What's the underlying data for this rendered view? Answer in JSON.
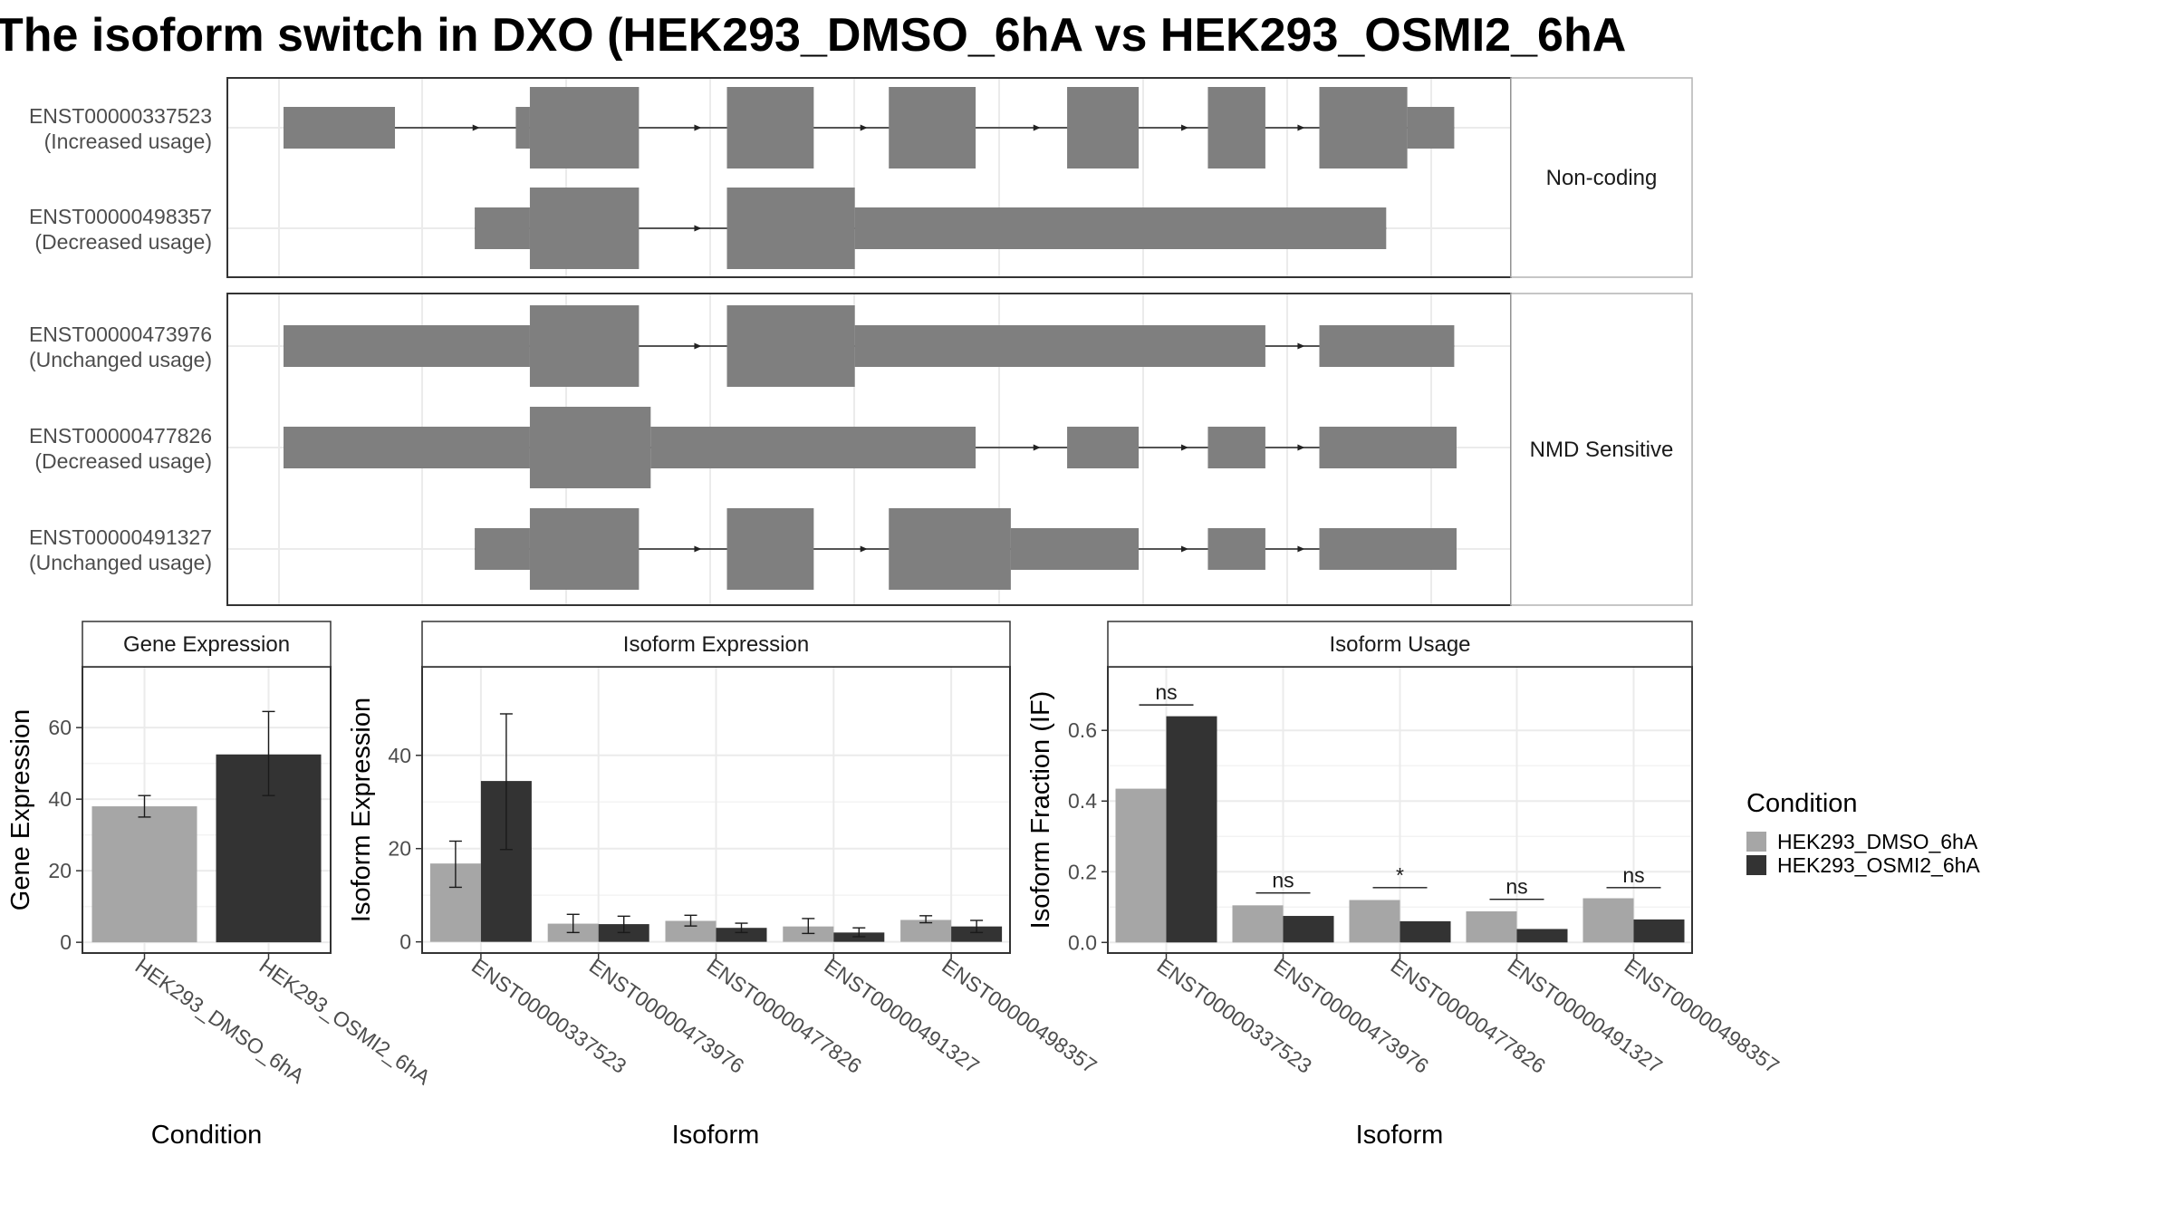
{
  "title": "The isoform switch in DXO (HEK293_DMSO_6hA vs HEK293_OSMI2_6hA",
  "structure": {
    "panels": [
      {
        "category": "Non-coding",
        "isoforms": [
          {
            "id": "ENST00000337523",
            "usage": "(Increased usage)",
            "blocks": [
              [
                0.0,
                0.095,
                "s"
              ],
              [
                0.198,
                0.21,
                "s"
              ],
              [
                0.21,
                0.303,
                "t"
              ],
              [
                0.378,
                0.452,
                "t"
              ],
              [
                0.516,
                0.59,
                "t"
              ],
              [
                0.668,
                0.729,
                "t"
              ],
              [
                0.788,
                0.837,
                "t"
              ],
              [
                0.883,
                0.958,
                "t"
              ],
              [
                0.958,
                0.998,
                "s"
              ]
            ],
            "arrows": true
          },
          {
            "id": "ENST00000498357",
            "usage": "(Decreased usage)",
            "blocks": [
              [
                0.163,
                0.21,
                "s"
              ],
              [
                0.21,
                0.303,
                "t"
              ],
              [
                0.378,
                0.487,
                "t"
              ],
              [
                0.487,
                0.94,
                "s"
              ]
            ],
            "arrows": true
          }
        ]
      },
      {
        "category": "NMD Sensitive",
        "isoforms": [
          {
            "id": "ENST00000473976",
            "usage": "(Unchanged usage)",
            "blocks": [
              [
                0.0,
                0.21,
                "s"
              ],
              [
                0.21,
                0.303,
                "t"
              ],
              [
                0.378,
                0.487,
                "t"
              ],
              [
                0.487,
                0.837,
                "s"
              ],
              [
                0.883,
                0.998,
                "s"
              ]
            ],
            "arrows": true
          },
          {
            "id": "ENST00000477826",
            "usage": "(Decreased usage)",
            "blocks": [
              [
                0.0,
                0.21,
                "s"
              ],
              [
                0.21,
                0.313,
                "t"
              ],
              [
                0.313,
                0.59,
                "s"
              ],
              [
                0.668,
                0.729,
                "s"
              ],
              [
                0.788,
                0.837,
                "s"
              ],
              [
                0.883,
                1.0,
                "s"
              ]
            ],
            "arrows": true
          },
          {
            "id": "ENST00000491327",
            "usage": "(Unchanged usage)",
            "blocks": [
              [
                0.163,
                0.21,
                "s"
              ],
              [
                0.21,
                0.303,
                "t"
              ],
              [
                0.378,
                0.452,
                "t"
              ],
              [
                0.516,
                0.62,
                "t"
              ],
              [
                0.62,
                0.729,
                "s"
              ],
              [
                0.788,
                0.837,
                "s"
              ],
              [
                0.883,
                1.0,
                "s"
              ]
            ],
            "arrows": true
          }
        ]
      }
    ]
  },
  "chart_data": [
    {
      "type": "bar",
      "title": "Gene Expression",
      "xlabel": "Condition",
      "ylabel": "Gene Expression",
      "ylim": [
        -3,
        77
      ],
      "yticks": [
        0,
        20,
        40,
        60
      ],
      "categories": [
        "HEK293_DMSO_6hA",
        "HEK293_OSMI2_6hA"
      ],
      "series": [
        {
          "values": [
            38,
            52.5
          ],
          "err_low": [
            35,
            41
          ],
          "err_high": [
            41,
            64.5
          ]
        }
      ]
    },
    {
      "type": "bar",
      "title": "Isoform Expression",
      "xlabel": "Isoform",
      "ylabel": "Isoform Expression",
      "ylim": [
        -2.4,
        59
      ],
      "yticks": [
        0,
        20,
        40
      ],
      "categories": [
        "ENST00000337523",
        "ENST00000473976",
        "ENST00000477826",
        "ENST00000491327",
        "ENST00000498357"
      ],
      "series": [
        {
          "name": "HEK293_DMSO_6hA",
          "values": [
            16.8,
            3.9,
            4.5,
            3.3,
            4.7
          ],
          "err_low": [
            11.7,
            2.0,
            3.4,
            1.8,
            4.1
          ],
          "err_high": [
            21.6,
            5.9,
            5.7,
            5.0,
            5.6
          ]
        },
        {
          "name": "HEK293_OSMI2_6hA",
          "values": [
            34.5,
            3.8,
            3.0,
            2.0,
            3.3
          ],
          "err_low": [
            19.8,
            2.0,
            2.0,
            1.1,
            2.0
          ],
          "err_high": [
            48.9,
            5.5,
            4.0,
            3.0,
            4.6
          ]
        }
      ]
    },
    {
      "type": "bar",
      "title": "Isoform Usage",
      "xlabel": "Isoform",
      "ylabel": "Isoform Fraction (IF)",
      "ylim": [
        -0.03,
        0.78
      ],
      "yticks": [
        0.0,
        0.2,
        0.4,
        0.6
      ],
      "ytick_labels": [
        "0.0",
        "0.2",
        "0.4",
        "0.6"
      ],
      "categories": [
        "ENST00000337523",
        "ENST00000473976",
        "ENST00000477826",
        "ENST00000491327",
        "ENST00000498357"
      ],
      "series": [
        {
          "name": "HEK293_DMSO_6hA",
          "values": [
            0.435,
            0.105,
            0.12,
            0.088,
            0.125
          ]
        },
        {
          "name": "HEK293_OSMI2_6hA",
          "values": [
            0.64,
            0.075,
            0.06,
            0.038,
            0.065
          ]
        }
      ],
      "significance": [
        {
          "label": "ns",
          "y": 0.672
        },
        {
          "label": "ns",
          "y": 0.14
        },
        {
          "label": "*",
          "y": 0.155
        },
        {
          "label": "ns",
          "y": 0.122
        },
        {
          "label": "ns",
          "y": 0.155
        }
      ]
    }
  ],
  "legend": {
    "title": "Condition",
    "entries": [
      "HEK293_DMSO_6hA",
      "HEK293_OSMI2_6hA"
    ],
    "colors": [
      "#a6a6a6",
      "#333333"
    ]
  },
  "colors": {
    "exon": "#7f7f7f",
    "grid": "#ebebeb",
    "strip": "#ffffff"
  }
}
